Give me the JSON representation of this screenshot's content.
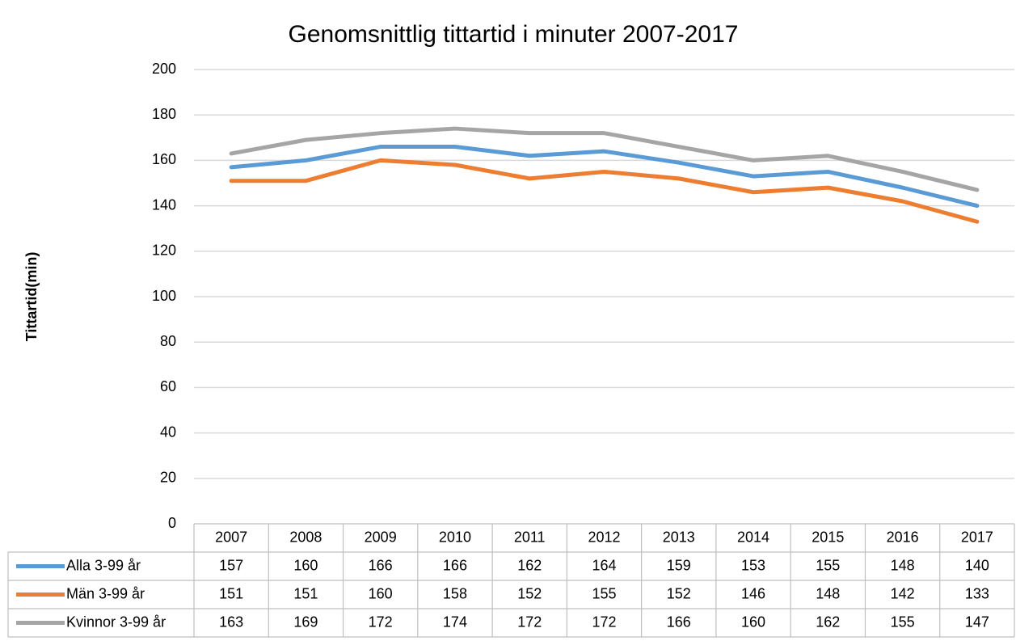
{
  "chart_data": {
    "type": "line",
    "title": "Genomsnittlig tittartid i minuter 2007-2017",
    "y_label": "Tittartid(min)",
    "categories": [
      "2007",
      "2008",
      "2009",
      "2010",
      "2011",
      "2012",
      "2013",
      "2014",
      "2015",
      "2016",
      "2017"
    ],
    "series": [
      {
        "name": "Alla 3-99 år",
        "color": "#5b9bd5",
        "values": [
          157,
          160,
          166,
          166,
          162,
          164,
          159,
          153,
          155,
          148,
          140
        ]
      },
      {
        "name": "Män 3-99 år",
        "color": "#ed7d31",
        "values": [
          151,
          151,
          160,
          158,
          152,
          155,
          152,
          146,
          148,
          142,
          133
        ]
      },
      {
        "name": "Kvinnor 3-99 år",
        "color": "#a5a5a5",
        "values": [
          163,
          169,
          172,
          174,
          172,
          172,
          166,
          160,
          162,
          155,
          147
        ]
      }
    ],
    "ylim": [
      0,
      200
    ],
    "yticks": [
      0,
      20,
      40,
      60,
      80,
      100,
      120,
      140,
      160,
      180,
      200
    ],
    "grid": true
  }
}
